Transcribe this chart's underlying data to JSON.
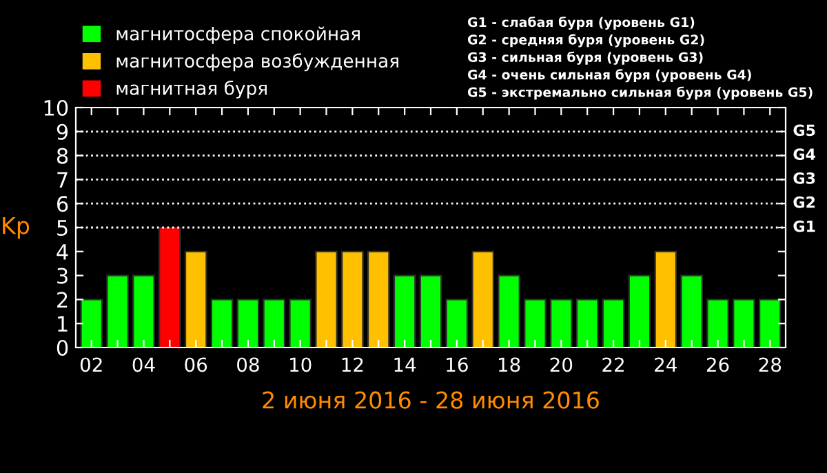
{
  "chart_data": {
    "type": "bar",
    "categories": [
      "02",
      null,
      "04",
      null,
      "06",
      null,
      "08",
      null,
      "10",
      null,
      "12",
      null,
      "14",
      null,
      "16",
      null,
      "18",
      null,
      "20",
      null,
      "22",
      null,
      "24",
      null,
      "26",
      null,
      "28"
    ],
    "series": [
      {
        "name": "магнитосфера спокойная",
        "color": "#00ff00",
        "values": [
          2,
          3,
          3,
          null,
          null,
          2,
          2,
          2,
          2,
          null,
          null,
          null,
          3,
          3,
          2,
          null,
          3,
          2,
          2,
          2,
          2,
          3,
          null,
          3,
          2,
          2,
          2
        ]
      },
      {
        "name": "магнитосфера возбужденная",
        "color": "#ffc000",
        "values": [
          null,
          null,
          null,
          null,
          4,
          null,
          null,
          null,
          null,
          4,
          4,
          4,
          null,
          null,
          null,
          4,
          null,
          null,
          null,
          null,
          null,
          null,
          4,
          null,
          null,
          null,
          null
        ]
      },
      {
        "name": "магнитная буря",
        "color": "#ff0000",
        "values": [
          null,
          null,
          null,
          5,
          null,
          null,
          null,
          null,
          null,
          null,
          null,
          null,
          null,
          null,
          null,
          null,
          null,
          null,
          null,
          null,
          null,
          null,
          null,
          null,
          null,
          null,
          null
        ]
      }
    ],
    "ylim": [
      0,
      10
    ],
    "yticks": [
      0,
      1,
      2,
      3,
      4,
      5,
      6,
      7,
      8,
      9,
      10
    ],
    "ylabel": "Kp",
    "xlabel": "2 июня 2016 - 28 июня 2016",
    "ref_lines": [
      {
        "axis": "y",
        "value": 5,
        "label": "G1",
        "color": "#ffffff",
        "line_style": "dotted"
      },
      {
        "axis": "y",
        "value": 6,
        "label": "G2",
        "color": "#ffffff",
        "line_style": "dotted"
      },
      {
        "axis": "y",
        "value": 7,
        "label": "G3",
        "color": "#ffffff",
        "line_style": "dotted"
      },
      {
        "axis": "y",
        "value": 8,
        "label": "G4",
        "color": "#ffffff",
        "line_style": "dotted"
      },
      {
        "axis": "y",
        "value": 9,
        "label": "G5",
        "color": "#ffffff",
        "line_style": "dotted"
      }
    ],
    "annotations": [
      "G1 - слабая буря (уровень G1)",
      "G2 - средняя буря (уровень G2)",
      "G3 - сильная буря (уровень G3)",
      "G4 - очень сильная буря (уровень G4)",
      "G5 - экстремально сильная буря (уровень G5)"
    ],
    "legend": "top left",
    "grid": false
  }
}
